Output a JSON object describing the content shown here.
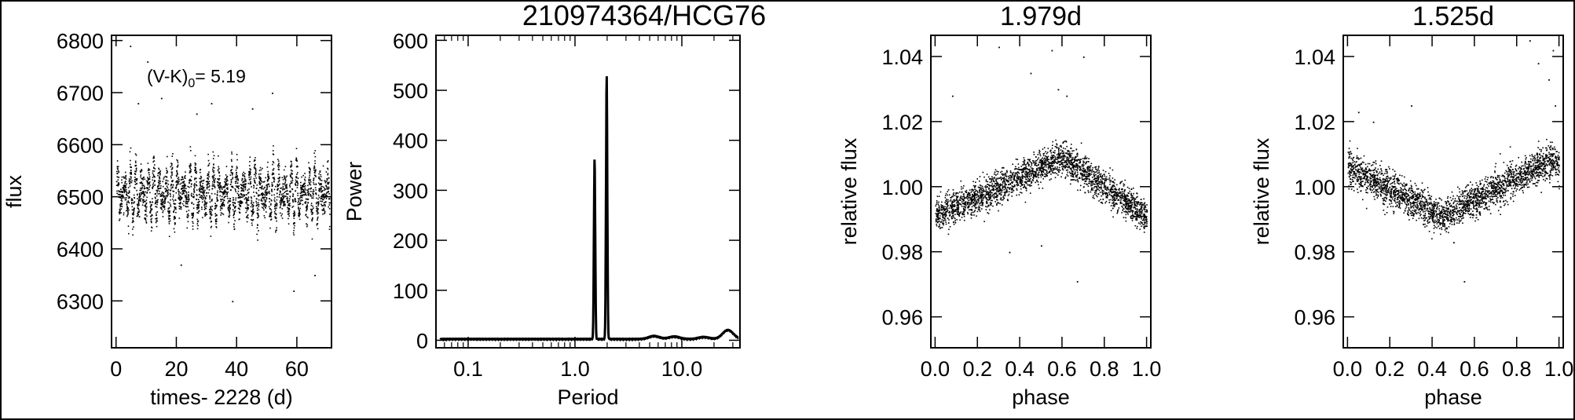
{
  "title": "210974364/HCG76",
  "chart_data": [
    {
      "id": "lightcurve",
      "type": "scatter",
      "title": "",
      "xlabel": "times- 2228 (d)",
      "ylabel": "flux",
      "xlim": [
        -1.5,
        71.5
      ],
      "ylim": [
        6210,
        6810
      ],
      "xticks": [
        0,
        20,
        40,
        60
      ],
      "xtick_labels": [
        "0",
        "20",
        "40",
        "60"
      ],
      "yticks": [
        6300,
        6400,
        6500,
        6600,
        6700,
        6800
      ],
      "ytick_labels": [
        "6300",
        "6400",
        "6500",
        "6600",
        "6700",
        "6800"
      ],
      "annotation": {
        "main": "(V-K)",
        "sub": "0",
        "value": "= 5.19"
      },
      "series": [
        {
          "x_range": [
            0,
            70.8
          ],
          "mean": 6508,
          "amplitude": 30,
          "period": 1.979,
          "scatter": 28,
          "n_points": 2600,
          "outliers": [
            [
              4.6,
              6790
            ],
            [
              10.3,
              6760
            ],
            [
              38.5,
              6300
            ],
            [
              58.8,
              6320
            ],
            [
              14.9,
              6690
            ],
            [
              31.5,
              6680
            ],
            [
              7.2,
              6680
            ],
            [
              45.1,
              6670
            ],
            [
              21.4,
              6370
            ],
            [
              65.8,
              6350
            ],
            [
              51.7,
              6700
            ],
            [
              26.6,
              6660
            ]
          ]
        }
      ]
    },
    {
      "id": "periodogram",
      "type": "line",
      "title": "",
      "xlabel": "Period",
      "ylabel": "Power",
      "xscale": "log",
      "xlim": [
        0.05,
        35
      ],
      "ylim": [
        -15,
        610
      ],
      "xticks": [
        0.1,
        1.0,
        10.0
      ],
      "xtick_labels": [
        "0.1",
        "1.0",
        "10.0"
      ],
      "yticks": [
        0,
        100,
        200,
        300,
        400,
        500,
        600
      ],
      "ytick_labels": [
        "0",
        "100",
        "200",
        "300",
        "400",
        "500",
        "600"
      ],
      "peaks": [
        {
          "period": 1.525,
          "power": 362
        },
        {
          "period": 1.979,
          "power": 530
        }
      ],
      "baseline_bumps": [
        {
          "period": 5.5,
          "power": 6
        },
        {
          "period": 8.5,
          "power": 5
        },
        {
          "period": 16.0,
          "power": 4
        },
        {
          "period": 27.0,
          "power": 18
        }
      ]
    },
    {
      "id": "phase1",
      "type": "scatter",
      "title": "1.979d",
      "xlabel": "phase",
      "ylabel": "relative flux",
      "xlim": [
        -0.02,
        1.02
      ],
      "ylim": [
        0.9505,
        1.0465
      ],
      "xticks": [
        0.0,
        0.2,
        0.4,
        0.6,
        0.8,
        1.0
      ],
      "xtick_labels": [
        "0.0",
        "0.2",
        "0.4",
        "0.6",
        "0.8",
        "1.0"
      ],
      "yticks": [
        0.96,
        0.98,
        1.0,
        1.02,
        1.04
      ],
      "ytick_labels": [
        "0.96",
        "0.98",
        "1.00",
        "1.02",
        "1.04"
      ],
      "series": [
        {
          "curve": "triangle",
          "low_phase": 0.0,
          "high_phase": 0.6,
          "low": 0.991,
          "high": 1.009,
          "scatter": 0.0045,
          "n_points": 2600,
          "outliers": [
            [
              0.3,
              1.043
            ],
            [
              0.45,
              1.035
            ],
            [
              0.55,
              1.042
            ],
            [
              0.7,
              1.04
            ],
            [
              0.67,
              0.971
            ],
            [
              0.5,
              0.982
            ],
            [
              0.35,
              0.98
            ],
            [
              0.58,
              1.03
            ],
            [
              0.62,
              1.028
            ],
            [
              0.08,
              1.028
            ]
          ]
        }
      ]
    },
    {
      "id": "phase2",
      "type": "scatter",
      "title": "1.525d",
      "xlabel": "phase",
      "ylabel": "relative flux",
      "xlim": [
        -0.02,
        1.02
      ],
      "ylim": [
        0.9505,
        1.0465
      ],
      "xticks": [
        0.0,
        0.2,
        0.4,
        0.6,
        0.8,
        1.0
      ],
      "xtick_labels": [
        "0.0",
        "0.2",
        "0.4",
        "0.6",
        "0.8",
        "1.0"
      ],
      "yticks": [
        0.96,
        0.98,
        1.0,
        1.02,
        1.04
      ],
      "ytick_labels": [
        "0.96",
        "0.98",
        "1.00",
        "1.02",
        "1.04"
      ],
      "series": [
        {
          "curve": "triangle",
          "low_phase": 0.45,
          "high_phase": 0.95,
          "low": 0.991,
          "high": 1.008,
          "scatter": 0.005,
          "n_points": 2600,
          "outliers": [
            [
              0.86,
              1.045
            ],
            [
              0.9,
              1.038
            ],
            [
              0.95,
              1.033
            ],
            [
              0.97,
              1.042
            ],
            [
              0.98,
              1.025
            ],
            [
              0.55,
              0.971
            ],
            [
              0.5,
              0.983
            ],
            [
              0.05,
              1.023
            ],
            [
              0.12,
              1.02
            ],
            [
              0.3,
              1.025
            ]
          ]
        }
      ]
    }
  ]
}
